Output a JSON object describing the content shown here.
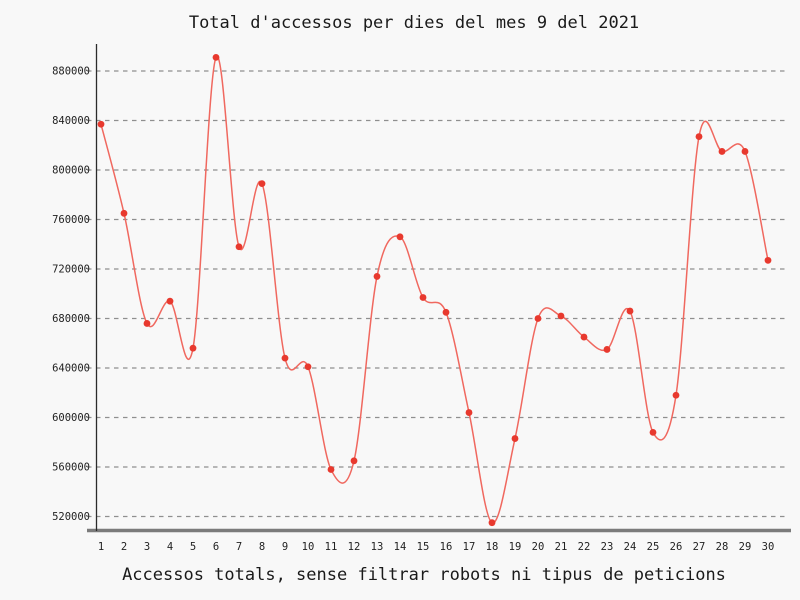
{
  "chart_data": {
    "type": "line",
    "title": "Total d'accessos per dies del mes 9 del 2021",
    "caption": "Accessos totals, sense filtrar robots ni tipus de peticions",
    "x": [
      1,
      2,
      3,
      4,
      5,
      6,
      7,
      8,
      9,
      10,
      11,
      12,
      13,
      14,
      15,
      16,
      17,
      18,
      19,
      20,
      21,
      22,
      23,
      24,
      25,
      26,
      27,
      28,
      29,
      30
    ],
    "series": [
      {
        "name": "accessos-totals",
        "values": [
          837000,
          765000,
          676000,
          694000,
          656000,
          891000,
          738000,
          789000,
          648000,
          641000,
          558000,
          565000,
          714000,
          746000,
          697000,
          685000,
          604000,
          515000,
          583000,
          680000,
          682000,
          665000,
          655000,
          686000,
          588000,
          618000,
          827000,
          815000,
          815000,
          727000
        ]
      }
    ],
    "yticks": [
      520000,
      560000,
      600000,
      640000,
      680000,
      720000,
      760000,
      800000,
      840000,
      880000
    ],
    "xticks": [
      1,
      2,
      3,
      4,
      5,
      6,
      7,
      8,
      9,
      10,
      11,
      12,
      13,
      14,
      15,
      16,
      17,
      18,
      19,
      20,
      21,
      22,
      23,
      24,
      25,
      26,
      27,
      28,
      29,
      30
    ],
    "ylim": [
      508000,
      902000
    ],
    "xlim": [
      1,
      30
    ],
    "grid": "horizontal-dashed",
    "legend": false,
    "smooth": true,
    "marker": "circle",
    "colors": {
      "background": "#f8f8f8",
      "line": "#f0685f",
      "marker": "#e8392e",
      "grid": "#8f8f8f",
      "axis": "#2b2b2b",
      "baseline": "#7b7b7b",
      "text": "#1a1a1a",
      "tick_text": "#222222"
    }
  }
}
